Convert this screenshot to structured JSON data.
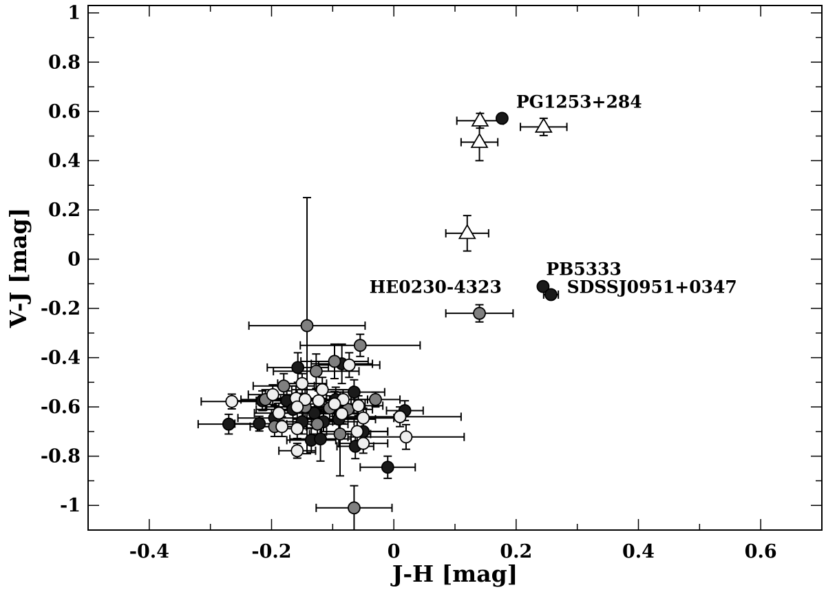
{
  "chart_data": {
    "type": "scatter",
    "xlabel": "J-H [mag]",
    "ylabel": "V-J [mag]",
    "xlim": [
      -0.5,
      0.7
    ],
    "ylim": [
      -1.1,
      1.03
    ],
    "x_ticks": [
      -0.4,
      -0.2,
      0,
      0.2,
      0.4,
      0.6
    ],
    "x_tick_labels": [
      "-0.4",
      "-0.2",
      "0",
      "0.2",
      "0.4",
      "0.6"
    ],
    "y_ticks": [
      1,
      0.8,
      0.6,
      0.4,
      0.2,
      0,
      -0.2,
      -0.4,
      -0.6,
      -0.8,
      -1
    ],
    "y_tick_labels": [
      "1",
      "0.8",
      "0.6",
      "0.4",
      "0.2",
      "0",
      "-0.2",
      "-0.4",
      "-0.6",
      "-0.8",
      "-1"
    ],
    "grid": false,
    "colors": {
      "black": "#1a1a1a",
      "gray": "#808080",
      "light": "#efefef",
      "triangle": "#ffffff"
    },
    "series": [
      {
        "marker": "circle",
        "color": "black",
        "points": [
          {
            "x": 0.177,
            "y": 0.572,
            "xerr": 0.005,
            "yerr": 0.005
          },
          {
            "x": 0.244,
            "y": -0.111,
            "xerr": 0.005,
            "yerr": 0.005
          },
          {
            "x": 0.257,
            "y": -0.144,
            "xerr": 0.012,
            "yerr": 0.012
          },
          {
            "x": -0.157,
            "y": -0.44,
            "xerr": 0.05,
            "yerr": 0.06
          },
          {
            "x": -0.27,
            "y": -0.67,
            "xerr": 0.05,
            "yerr": 0.04
          },
          {
            "x": -0.22,
            "y": -0.668,
            "xerr": 0.04,
            "yerr": 0.03
          },
          {
            "x": -0.215,
            "y": -0.575,
            "xerr": 0.05,
            "yerr": 0.04
          },
          {
            "x": -0.195,
            "y": -0.645,
            "xerr": 0.06,
            "yerr": 0.05
          },
          {
            "x": -0.175,
            "y": -0.575,
            "xerr": 0.05,
            "yerr": 0.04
          },
          {
            "x": -0.165,
            "y": -0.61,
            "xerr": 0.06,
            "yerr": 0.05
          },
          {
            "x": -0.15,
            "y": -0.66,
            "xerr": 0.05,
            "yerr": 0.05
          },
          {
            "x": -0.135,
            "y": -0.735,
            "xerr": 0.04,
            "yerr": 0.05
          },
          {
            "x": -0.13,
            "y": -0.625,
            "xerr": 0.07,
            "yerr": 0.05
          },
          {
            "x": -0.12,
            "y": -0.73,
            "xerr": 0.05,
            "yerr": 0.09
          },
          {
            "x": -0.115,
            "y": -0.66,
            "xerr": 0.05,
            "yerr": 0.04
          },
          {
            "x": -0.095,
            "y": -0.57,
            "xerr": 0.06,
            "yerr": 0.05
          },
          {
            "x": -0.09,
            "y": -0.65,
            "xerr": 0.06,
            "yerr": 0.05
          },
          {
            "x": -0.085,
            "y": -0.425,
            "xerr": 0.05,
            "yerr": 0.08
          },
          {
            "x": -0.065,
            "y": -0.54,
            "xerr": 0.05,
            "yerr": 0.05
          },
          {
            "x": -0.063,
            "y": -0.76,
            "xerr": 0.03,
            "yerr": 0.05
          },
          {
            "x": -0.05,
            "y": -0.7,
            "xerr": 0.04,
            "yerr": 0.04
          },
          {
            "x": -0.01,
            "y": -0.845,
            "xerr": 0.045,
            "yerr": 0.045
          },
          {
            "x": 0.018,
            "y": -0.615,
            "xerr": 0.03,
            "yerr": 0.04
          }
        ]
      },
      {
        "marker": "circle",
        "color": "gray",
        "points": [
          {
            "x": 0.14,
            "y": -0.22,
            "xerr": 0.055,
            "yerr": 0.035
          },
          {
            "x": -0.142,
            "y": -0.27,
            "xerr": 0.095,
            "yerr": 0.52
          },
          {
            "x": -0.055,
            "y": -0.35,
            "xerr": 0.098,
            "yerr": 0.045
          },
          {
            "x": -0.097,
            "y": -0.415,
            "xerr": 0.055,
            "yerr": 0.07
          },
          {
            "x": -0.127,
            "y": -0.455,
            "xerr": 0.07,
            "yerr": 0.07
          },
          {
            "x": -0.18,
            "y": -0.515,
            "xerr": 0.05,
            "yerr": 0.05
          },
          {
            "x": -0.03,
            "y": -0.57,
            "xerr": 0.04,
            "yerr": 0.03
          },
          {
            "x": -0.21,
            "y": -0.57,
            "xerr": 0.04,
            "yerr": 0.04
          },
          {
            "x": -0.145,
            "y": -0.6,
            "xerr": 0.05,
            "yerr": 0.05
          },
          {
            "x": -0.105,
            "y": -0.605,
            "xerr": 0.04,
            "yerr": 0.05
          },
          {
            "x": -0.075,
            "y": -0.61,
            "xerr": 0.04,
            "yerr": 0.04
          },
          {
            "x": -0.125,
            "y": -0.67,
            "xerr": 0.05,
            "yerr": 0.05
          },
          {
            "x": -0.088,
            "y": -0.71,
            "xerr": 0.05,
            "yerr": 0.17
          },
          {
            "x": -0.065,
            "y": -1.01,
            "xerr": 0.062,
            "yerr": 0.09
          },
          {
            "x": -0.195,
            "y": -0.68,
            "xerr": 0.04,
            "yerr": 0.04
          }
        ]
      },
      {
        "marker": "circle",
        "color": "light",
        "points": [
          {
            "x": -0.073,
            "y": -0.43,
            "xerr": 0.05,
            "yerr": 0.05
          },
          {
            "x": -0.15,
            "y": -0.505,
            "xerr": 0.04,
            "yerr": 0.04
          },
          {
            "x": -0.117,
            "y": -0.53,
            "xerr": 0.05,
            "yerr": 0.05
          },
          {
            "x": -0.198,
            "y": -0.55,
            "xerr": 0.04,
            "yerr": 0.04
          },
          {
            "x": -0.16,
            "y": -0.565,
            "xerr": 0.05,
            "yerr": 0.05
          },
          {
            "x": -0.145,
            "y": -0.57,
            "xerr": 0.04,
            "yerr": 0.04
          },
          {
            "x": -0.123,
            "y": -0.575,
            "xerr": 0.04,
            "yerr": 0.04
          },
          {
            "x": -0.083,
            "y": -0.57,
            "xerr": 0.04,
            "yerr": 0.04
          },
          {
            "x": -0.265,
            "y": -0.578,
            "xerr": 0.05,
            "yerr": 0.03
          },
          {
            "x": -0.097,
            "y": -0.588,
            "xerr": 0.05,
            "yerr": 0.05
          },
          {
            "x": -0.058,
            "y": -0.595,
            "xerr": 0.04,
            "yerr": 0.04
          },
          {
            "x": -0.158,
            "y": -0.6,
            "xerr": 0.05,
            "yerr": 0.05
          },
          {
            "x": -0.188,
            "y": -0.625,
            "xerr": 0.04,
            "yerr": 0.04
          },
          {
            "x": -0.085,
            "y": -0.628,
            "xerr": 0.04,
            "yerr": 0.04
          },
          {
            "x": 0.01,
            "y": -0.64,
            "xerr": 0.1,
            "yerr": 0.04
          },
          {
            "x": -0.05,
            "y": -0.645,
            "xerr": 0.05,
            "yerr": 0.04
          },
          {
            "x": -0.183,
            "y": -0.68,
            "xerr": 0.04,
            "yerr": 0.04
          },
          {
            "x": -0.158,
            "y": -0.688,
            "xerr": 0.04,
            "yerr": 0.04
          },
          {
            "x": -0.06,
            "y": -0.7,
            "xerr": 0.05,
            "yerr": 0.04
          },
          {
            "x": 0.02,
            "y": -0.722,
            "xerr": 0.095,
            "yerr": 0.05
          },
          {
            "x": -0.05,
            "y": -0.748,
            "xerr": 0.04,
            "yerr": 0.04
          },
          {
            "x": -0.158,
            "y": -0.778,
            "xerr": 0.03,
            "yerr": 0.03
          }
        ]
      },
      {
        "marker": "triangle",
        "color": "triangle",
        "points": [
          {
            "x": 0.141,
            "y": 0.562,
            "xerr": 0.038,
            "yerr": 0.03
          },
          {
            "x": 0.14,
            "y": 0.475,
            "xerr": 0.03,
            "yerr": 0.075
          },
          {
            "x": 0.245,
            "y": 0.537,
            "xerr": 0.038,
            "yerr": 0.035
          },
          {
            "x": 0.12,
            "y": 0.105,
            "xerr": 0.035,
            "yerr": 0.072
          }
        ]
      }
    ],
    "annotations": [
      {
        "text": "PG1253+284",
        "x": 0.2,
        "y": 0.615
      },
      {
        "text": "PB5333",
        "x": 0.249,
        "y": -0.065
      },
      {
        "text": "SDSSJ0951+0347",
        "x": 0.283,
        "y": -0.137
      },
      {
        "text": "HE0230-4323",
        "x": -0.04,
        "y": -0.137
      }
    ]
  }
}
